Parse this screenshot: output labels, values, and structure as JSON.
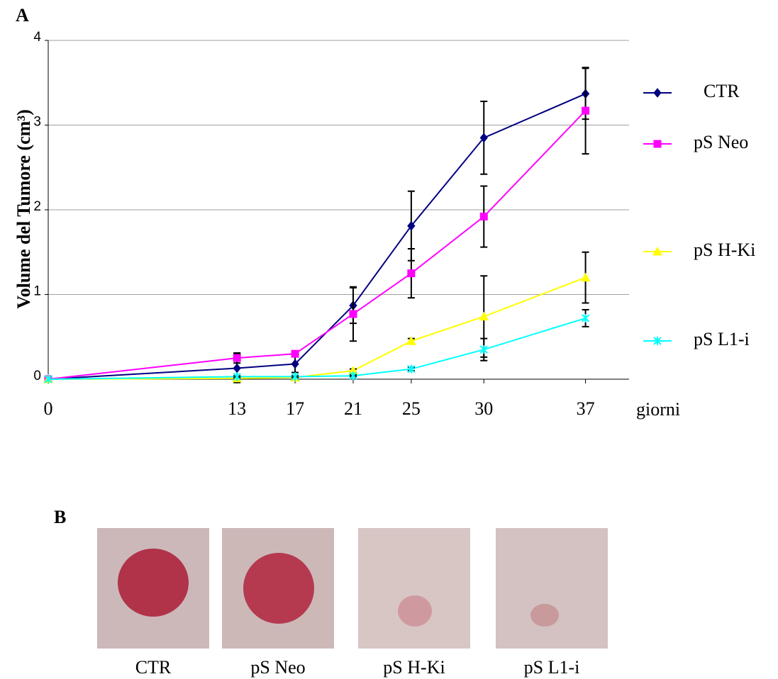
{
  "panel_labels": [
    "A",
    "B"
  ],
  "chart_data": {
    "type": "line",
    "y_label": "Volume del Tumore (cm³)",
    "x_label": "giorni",
    "x": [
      0,
      13,
      17,
      21,
      25,
      30,
      37
    ],
    "xlim": [
      0,
      40
    ],
    "xticks": [
      0,
      13,
      17,
      21,
      25,
      30,
      37
    ],
    "ylim": [
      0,
      4
    ],
    "yticks": [
      0,
      1,
      2,
      3,
      4
    ],
    "grid": true,
    "series": [
      {
        "name": "CTR",
        "color": "#000080",
        "marker": "diamond",
        "values": [
          0,
          0.13,
          0.18,
          0.87,
          1.81,
          2.85,
          3.37
        ],
        "errors": [
          0,
          0.17,
          0.1,
          0.21,
          0.41,
          0.43,
          0.3
        ]
      },
      {
        "name": "pS Neo",
        "color": "#ff00ff",
        "marker": "square",
        "values": [
          0,
          0.25,
          0.3,
          0.77,
          1.25,
          1.92,
          3.17
        ],
        "errors": [
          0,
          0.06,
          0.03,
          0.32,
          0.29,
          0.36,
          0.51
        ]
      },
      {
        "name": "pS H-Ki",
        "color": "#ffff00",
        "marker": "triangle",
        "values": [
          0,
          0.01,
          0.02,
          0.1,
          0.45,
          0.74,
          1.2
        ],
        "errors": [
          0,
          0.01,
          0.01,
          0.02,
          0.03,
          0.48,
          0.3
        ]
      },
      {
        "name": "pS L1-i",
        "color": "#00ffff",
        "marker": "star",
        "values": [
          0,
          0.03,
          0.03,
          0.04,
          0.12,
          0.35,
          0.72
        ],
        "errors": [
          0,
          0.01,
          0.01,
          0.01,
          0.02,
          0.13,
          0.1
        ]
      }
    ]
  },
  "photo_captions": [
    "CTR",
    "pS Neo",
    "pS H-Ki",
    "pS L1-i"
  ]
}
